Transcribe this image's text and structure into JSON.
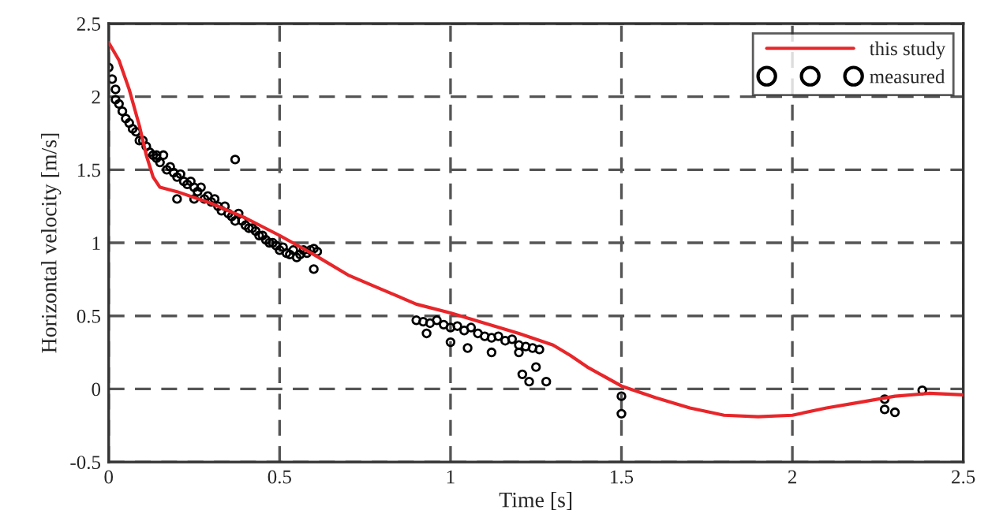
{
  "chart_data": {
    "type": "line",
    "xlabel": "Time [s]",
    "ylabel": "Horizontal velocity [m/s]",
    "xlim": [
      0,
      2.5
    ],
    "xticks": [
      0,
      0.5,
      1,
      1.5,
      2,
      2.5
    ],
    "ylim": [
      -0.5,
      2.5
    ],
    "yticks": [
      -0.5,
      0,
      0.5,
      1,
      1.5,
      2,
      2.5
    ],
    "grid": true,
    "legend": "top right",
    "series": [
      {
        "name": "this study",
        "color": "#e8262a",
        "marker": "none",
        "line_style": "solid",
        "x": [
          0,
          0.03,
          0.06,
          0.09,
          0.11,
          0.13,
          0.15,
          0.2,
          0.3,
          0.4,
          0.5,
          0.6,
          0.7,
          0.8,
          0.9,
          1.0,
          1.1,
          1.2,
          1.3,
          1.35,
          1.4,
          1.5,
          1.6,
          1.7,
          1.8,
          1.9,
          2.0,
          2.1,
          2.2,
          2.3,
          2.4,
          2.5
        ],
        "values": [
          2.37,
          2.25,
          2.05,
          1.8,
          1.6,
          1.45,
          1.38,
          1.35,
          1.27,
          1.17,
          1.05,
          0.92,
          0.78,
          0.68,
          0.58,
          0.52,
          0.45,
          0.38,
          0.3,
          0.23,
          0.15,
          0.02,
          -0.06,
          -0.13,
          -0.18,
          -0.19,
          -0.18,
          -0.13,
          -0.09,
          -0.05,
          -0.03,
          -0.04
        ]
      },
      {
        "name": "measured",
        "type": "scatter",
        "color": "#000000",
        "marker": "circle",
        "x": [
          0.0,
          0.01,
          0.02,
          0.02,
          0.03,
          0.04,
          0.05,
          0.06,
          0.07,
          0.08,
          0.09,
          0.1,
          0.11,
          0.12,
          0.13,
          0.14,
          0.15,
          0.16,
          0.17,
          0.18,
          0.19,
          0.2,
          0.21,
          0.22,
          0.23,
          0.24,
          0.25,
          0.26,
          0.27,
          0.28,
          0.29,
          0.3,
          0.31,
          0.32,
          0.33,
          0.34,
          0.35,
          0.36,
          0.37,
          0.38,
          0.39,
          0.4,
          0.41,
          0.42,
          0.43,
          0.44,
          0.45,
          0.46,
          0.47,
          0.48,
          0.49,
          0.5,
          0.51,
          0.52,
          0.53,
          0.54,
          0.55,
          0.56,
          0.57,
          0.58,
          0.59,
          0.6,
          0.61,
          0.6,
          0.25,
          0.37,
          0.14,
          0.2,
          0.9,
          0.92,
          0.94,
          0.96,
          0.98,
          1.0,
          1.02,
          1.04,
          1.06,
          1.08,
          1.1,
          1.12,
          1.14,
          1.16,
          1.18,
          1.2,
          1.22,
          1.24,
          1.26,
          0.93,
          1.0,
          1.05,
          1.12,
          1.2,
          1.25,
          1.28,
          1.21,
          1.23,
          1.5,
          1.5,
          2.27,
          2.27,
          2.3,
          2.38
        ],
        "values": [
          2.2,
          2.12,
          2.05,
          1.98,
          1.95,
          1.9,
          1.85,
          1.82,
          1.78,
          1.76,
          1.7,
          1.7,
          1.66,
          1.62,
          1.6,
          1.58,
          1.55,
          1.6,
          1.5,
          1.52,
          1.48,
          1.45,
          1.47,
          1.42,
          1.4,
          1.42,
          1.38,
          1.35,
          1.38,
          1.3,
          1.32,
          1.28,
          1.3,
          1.25,
          1.22,
          1.25,
          1.2,
          1.18,
          1.15,
          1.2,
          1.15,
          1.12,
          1.1,
          1.1,
          1.08,
          1.05,
          1.05,
          1.02,
          1.0,
          1.0,
          0.98,
          0.95,
          0.97,
          0.93,
          0.92,
          0.95,
          0.9,
          0.92,
          0.95,
          0.93,
          0.95,
          0.96,
          0.94,
          0.82,
          1.3,
          1.57,
          1.6,
          1.3,
          0.47,
          0.46,
          0.45,
          0.47,
          0.44,
          0.42,
          0.43,
          0.4,
          0.42,
          0.38,
          0.36,
          0.35,
          0.36,
          0.33,
          0.34,
          0.3,
          0.29,
          0.28,
          0.27,
          0.38,
          0.32,
          0.28,
          0.25,
          0.25,
          0.15,
          0.05,
          0.1,
          0.05,
          -0.05,
          -0.17,
          -0.07,
          -0.14,
          -0.16,
          -0.01
        ]
      }
    ]
  }
}
